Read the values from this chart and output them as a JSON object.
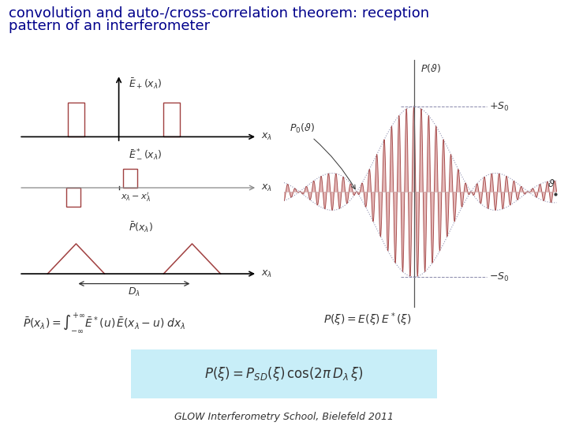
{
  "title_line1": "convolution and auto-/cross-correlation theorem: reception",
  "title_line2": "pattern of an interferometer",
  "title_color": "#00008B",
  "title_fontsize": 13,
  "footer": "GLOW Interferometry School, Bielefeld 2011",
  "footer_fontsize": 9,
  "bg_color": "#ffffff",
  "red_color": "#A04040",
  "red_fill": "#D08080",
  "dark_color": "#333333",
  "gray_color": "#888888",
  "dot_color": "#8888AA",
  "highlight_color": "#C8EEF8"
}
